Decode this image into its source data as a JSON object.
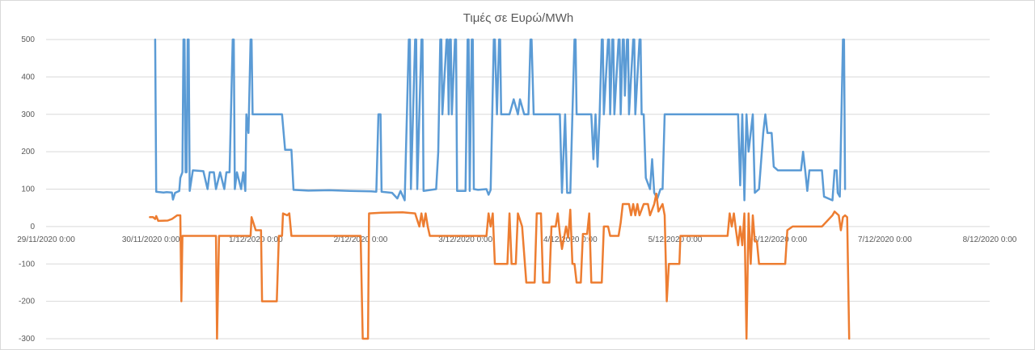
{
  "chart_data": {
    "type": "line",
    "title": "Τιμές σε Ευρώ/MWh",
    "xlabel": "",
    "ylabel": "",
    "ylim": [
      -300,
      500
    ],
    "y_ticks": [
      "500",
      "400",
      "300",
      "200",
      "100",
      "0",
      "-100",
      "-200",
      "-300"
    ],
    "y_tick_values": [
      500,
      400,
      300,
      200,
      100,
      0,
      -100,
      -200,
      -300
    ],
    "x_unit": "days since 29/11/2020 0:00",
    "xlim": [
      0,
      9
    ],
    "x_ticks": [
      "29/11/2020 0:00",
      "30/11/2020 0:00",
      "1/12/2020 0:00",
      "2/12/2020 0:00",
      "3/12/2020 0:00",
      "4/12/2020 0:00",
      "5/12/2020 0:00",
      "6/12/2020 0:00",
      "7/12/2020 0:00",
      "8/12/2020 0:00"
    ],
    "grid": true,
    "colors": {
      "series1": "#5b9bd5",
      "series2": "#ed7d31",
      "grid": "#d9d9d9",
      "text": "#595959"
    },
    "series": [
      {
        "points": [
          [
            1.04,
            500
          ],
          [
            1.05,
            93
          ],
          [
            1.12,
            91
          ],
          [
            1.15,
            92
          ],
          [
            1.2,
            91
          ],
          [
            1.21,
            72
          ],
          [
            1.23,
            90
          ],
          [
            1.27,
            95
          ],
          [
            1.28,
            130
          ],
          [
            1.3,
            145
          ],
          [
            1.31,
            500
          ],
          [
            1.32,
            500
          ],
          [
            1.33,
            145
          ],
          [
            1.34,
            145
          ],
          [
            1.35,
            500
          ],
          [
            1.36,
            500
          ],
          [
            1.37,
            95
          ],
          [
            1.4,
            150
          ],
          [
            1.5,
            148
          ],
          [
            1.54,
            100
          ],
          [
            1.56,
            145
          ],
          [
            1.6,
            145
          ],
          [
            1.62,
            100
          ],
          [
            1.66,
            145
          ],
          [
            1.7,
            100
          ],
          [
            1.72,
            145
          ],
          [
            1.75,
            145
          ],
          [
            1.78,
            500
          ],
          [
            1.79,
            500
          ],
          [
            1.8,
            100
          ],
          [
            1.82,
            145
          ],
          [
            1.86,
            100
          ],
          [
            1.88,
            145
          ],
          [
            1.9,
            95
          ],
          [
            1.91,
            300
          ],
          [
            1.93,
            250
          ],
          [
            1.95,
            500
          ],
          [
            1.96,
            500
          ],
          [
            1.97,
            300
          ],
          [
            2.25,
            300
          ],
          [
            2.28,
            205
          ],
          [
            2.34,
            205
          ],
          [
            2.36,
            98
          ],
          [
            2.5,
            96
          ],
          [
            2.7,
            97
          ],
          [
            2.9,
            95
          ],
          [
            3.1,
            94
          ],
          [
            3.15,
            93
          ],
          [
            3.17,
            300
          ],
          [
            3.19,
            300
          ],
          [
            3.2,
            93
          ],
          [
            3.3,
            90
          ],
          [
            3.35,
            75
          ],
          [
            3.38,
            95
          ],
          [
            3.42,
            70
          ],
          [
            3.46,
            500
          ],
          [
            3.47,
            500
          ],
          [
            3.48,
            100
          ],
          [
            3.52,
            500
          ],
          [
            3.53,
            500
          ],
          [
            3.54,
            100
          ],
          [
            3.58,
            500
          ],
          [
            3.59,
            500
          ],
          [
            3.6,
            95
          ],
          [
            3.72,
            100
          ],
          [
            3.74,
            200
          ],
          [
            3.76,
            500
          ],
          [
            3.77,
            500
          ],
          [
            3.78,
            300
          ],
          [
            3.82,
            500
          ],
          [
            3.83,
            500
          ],
          [
            3.84,
            300
          ],
          [
            3.85,
            500
          ],
          [
            3.86,
            500
          ],
          [
            3.87,
            300
          ],
          [
            3.9,
            500
          ],
          [
            3.91,
            500
          ],
          [
            3.92,
            95
          ],
          [
            4.0,
            95
          ],
          [
            4.02,
            500
          ],
          [
            4.03,
            500
          ],
          [
            4.04,
            95
          ],
          [
            4.06,
            500
          ],
          [
            4.07,
            500
          ],
          [
            4.08,
            100
          ],
          [
            4.12,
            98
          ],
          [
            4.2,
            100
          ],
          [
            4.22,
            85
          ],
          [
            4.24,
            98
          ],
          [
            4.27,
            500
          ],
          [
            4.28,
            500
          ],
          [
            4.3,
            300
          ],
          [
            4.32,
            500
          ],
          [
            4.33,
            500
          ],
          [
            4.34,
            300
          ],
          [
            4.42,
            300
          ],
          [
            4.46,
            340
          ],
          [
            4.5,
            300
          ],
          [
            4.52,
            340
          ],
          [
            4.56,
            300
          ],
          [
            4.6,
            300
          ],
          [
            4.62,
            500
          ],
          [
            4.63,
            500
          ],
          [
            4.65,
            300
          ],
          [
            4.9,
            300
          ],
          [
            4.92,
            90
          ],
          [
            4.95,
            300
          ],
          [
            4.97,
            90
          ],
          [
            5.0,
            90
          ],
          [
            5.02,
            300
          ],
          [
            5.04,
            500
          ],
          [
            5.05,
            500
          ],
          [
            5.06,
            300
          ],
          [
            5.2,
            300
          ],
          [
            5.22,
            180
          ],
          [
            5.24,
            300
          ],
          [
            5.26,
            160
          ],
          [
            5.28,
            300
          ],
          [
            5.3,
            500
          ],
          [
            5.31,
            500
          ],
          [
            5.32,
            300
          ],
          [
            5.36,
            500
          ],
          [
            5.37,
            500
          ],
          [
            5.38,
            300
          ],
          [
            5.4,
            500
          ],
          [
            5.41,
            500
          ],
          [
            5.42,
            300
          ],
          [
            5.46,
            500
          ],
          [
            5.47,
            500
          ],
          [
            5.48,
            300
          ],
          [
            5.5,
            500
          ],
          [
            5.51,
            500
          ],
          [
            5.52,
            350
          ],
          [
            5.54,
            500
          ],
          [
            5.55,
            500
          ],
          [
            5.56,
            300
          ],
          [
            5.6,
            500
          ],
          [
            5.61,
            500
          ],
          [
            5.62,
            300
          ],
          [
            5.66,
            500
          ],
          [
            5.67,
            500
          ],
          [
            5.68,
            300
          ],
          [
            5.7,
            300
          ],
          [
            5.72,
            130
          ],
          [
            5.76,
            100
          ],
          [
            5.78,
            180
          ],
          [
            5.8,
            90
          ],
          [
            5.83,
            75
          ],
          [
            5.86,
            100
          ],
          [
            5.88,
            100
          ],
          [
            5.9,
            300
          ],
          [
            6.6,
            300
          ],
          [
            6.62,
            110
          ],
          [
            6.64,
            300
          ],
          [
            6.66,
            70
          ],
          [
            6.68,
            300
          ],
          [
            6.7,
            200
          ],
          [
            6.74,
            300
          ],
          [
            6.76,
            90
          ],
          [
            6.8,
            100
          ],
          [
            6.84,
            250
          ],
          [
            6.86,
            300
          ],
          [
            6.88,
            250
          ],
          [
            6.92,
            250
          ],
          [
            6.94,
            160
          ],
          [
            6.98,
            150
          ],
          [
            7.2,
            150
          ],
          [
            7.22,
            200
          ],
          [
            7.24,
            150
          ],
          [
            7.26,
            95
          ],
          [
            7.28,
            150
          ],
          [
            7.4,
            150
          ],
          [
            7.42,
            80
          ],
          [
            7.5,
            70
          ],
          [
            7.52,
            150
          ],
          [
            7.54,
            150
          ],
          [
            7.55,
            90
          ],
          [
            7.57,
            80
          ],
          [
            7.6,
            500
          ],
          [
            7.61,
            500
          ],
          [
            7.62,
            100
          ]
        ]
      },
      {
        "points": [
          [
            0.99,
            25
          ],
          [
            1.02,
            25
          ],
          [
            1.04,
            20
          ],
          [
            1.05,
            28
          ],
          [
            1.07,
            15
          ],
          [
            1.16,
            16
          ],
          [
            1.2,
            20
          ],
          [
            1.25,
            30
          ],
          [
            1.28,
            30
          ],
          [
            1.29,
            -200
          ],
          [
            1.3,
            -25
          ],
          [
            1.62,
            -25
          ],
          [
            1.63,
            -300
          ],
          [
            1.65,
            -25
          ],
          [
            1.95,
            -25
          ],
          [
            1.96,
            25
          ],
          [
            2.0,
            -10
          ],
          [
            2.05,
            -10
          ],
          [
            2.06,
            -200
          ],
          [
            2.2,
            -200
          ],
          [
            2.22,
            -25
          ],
          [
            2.25,
            -25
          ],
          [
            2.26,
            35
          ],
          [
            2.3,
            30
          ],
          [
            2.32,
            35
          ],
          [
            2.34,
            -25
          ],
          [
            3.0,
            -25
          ],
          [
            3.02,
            -300
          ],
          [
            3.07,
            -300
          ],
          [
            3.08,
            35
          ],
          [
            3.2,
            37
          ],
          [
            3.4,
            38
          ],
          [
            3.52,
            35
          ],
          [
            3.56,
            0
          ],
          [
            3.58,
            35
          ],
          [
            3.6,
            0
          ],
          [
            3.62,
            35
          ],
          [
            3.64,
            0
          ],
          [
            3.66,
            -25
          ],
          [
            4.2,
            -25
          ],
          [
            4.22,
            35
          ],
          [
            4.24,
            0
          ],
          [
            4.26,
            35
          ],
          [
            4.28,
            -100
          ],
          [
            4.4,
            -100
          ],
          [
            4.42,
            35
          ],
          [
            4.44,
            -100
          ],
          [
            4.48,
            -100
          ],
          [
            4.5,
            35
          ],
          [
            4.54,
            0
          ],
          [
            4.58,
            -150
          ],
          [
            4.66,
            -150
          ],
          [
            4.68,
            35
          ],
          [
            4.72,
            35
          ],
          [
            4.74,
            -150
          ],
          [
            4.8,
            -150
          ],
          [
            4.82,
            0
          ],
          [
            4.86,
            0
          ],
          [
            4.88,
            35
          ],
          [
            4.9,
            -20
          ],
          [
            4.92,
            -60
          ],
          [
            4.96,
            0
          ],
          [
            4.98,
            -30
          ],
          [
            5.0,
            45
          ],
          [
            5.02,
            -100
          ],
          [
            5.04,
            -100
          ],
          [
            5.06,
            -150
          ],
          [
            5.1,
            -150
          ],
          [
            5.12,
            -20
          ],
          [
            5.16,
            -20
          ],
          [
            5.18,
            35
          ],
          [
            5.2,
            -150
          ],
          [
            5.3,
            -150
          ],
          [
            5.32,
            0
          ],
          [
            5.36,
            0
          ],
          [
            5.38,
            -25
          ],
          [
            5.46,
            -25
          ],
          [
            5.48,
            10
          ],
          [
            5.5,
            60
          ],
          [
            5.56,
            60
          ],
          [
            5.58,
            30
          ],
          [
            5.6,
            60
          ],
          [
            5.62,
            30
          ],
          [
            5.64,
            60
          ],
          [
            5.66,
            30
          ],
          [
            5.7,
            60
          ],
          [
            5.74,
            60
          ],
          [
            5.76,
            30
          ],
          [
            5.8,
            60
          ],
          [
            5.82,
            88
          ],
          [
            5.84,
            40
          ],
          [
            5.88,
            60
          ],
          [
            5.9,
            30
          ],
          [
            5.92,
            -200
          ],
          [
            5.94,
            -100
          ],
          [
            6.0,
            -100
          ],
          [
            6.04,
            -100
          ],
          [
            6.05,
            -25
          ],
          [
            6.3,
            -25
          ],
          [
            6.5,
            -25
          ],
          [
            6.52,
            35
          ],
          [
            6.54,
            0
          ],
          [
            6.56,
            35
          ],
          [
            6.58,
            -10
          ],
          [
            6.6,
            -50
          ],
          [
            6.62,
            0
          ],
          [
            6.64,
            -50
          ],
          [
            6.66,
            35
          ],
          [
            6.68,
            -300
          ],
          [
            6.7,
            35
          ],
          [
            6.72,
            -100
          ],
          [
            6.74,
            30
          ],
          [
            6.76,
            -40
          ],
          [
            6.78,
            -40
          ],
          [
            6.8,
            -100
          ],
          [
            7.05,
            -100
          ],
          [
            7.07,
            -10
          ],
          [
            7.12,
            0
          ],
          [
            7.2,
            0
          ],
          [
            7.35,
            0
          ],
          [
            7.4,
            0
          ],
          [
            7.5,
            30
          ],
          [
            7.52,
            40
          ],
          [
            7.56,
            30
          ],
          [
            7.58,
            -10
          ],
          [
            7.6,
            25
          ],
          [
            7.62,
            30
          ],
          [
            7.64,
            25
          ],
          [
            7.66,
            -300
          ]
        ]
      }
    ]
  }
}
